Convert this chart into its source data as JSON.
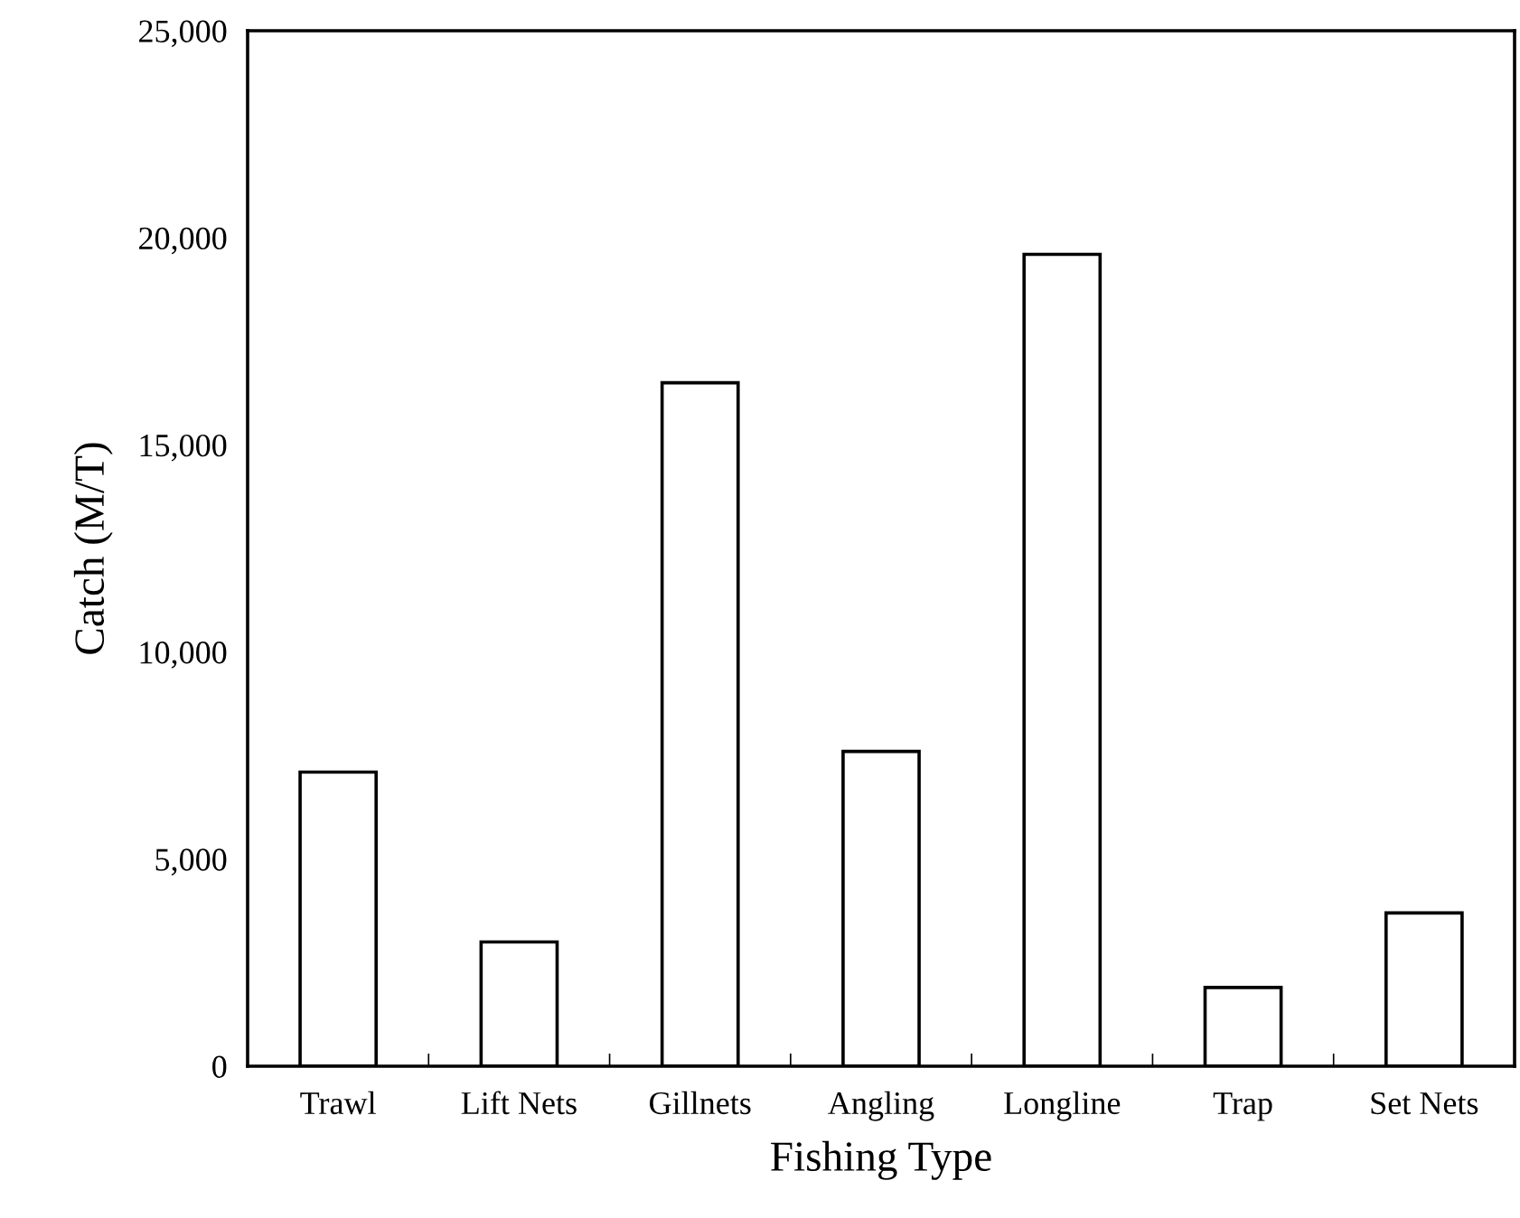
{
  "chart_data": {
    "type": "bar",
    "xlabel": "Fishing Type",
    "ylabel": "Catch (M/T)",
    "categories": [
      "Trawl",
      "Lift Nets",
      "Gillnets",
      "Angling",
      "Longline",
      "Trap",
      "Set Nets"
    ],
    "values": [
      7100,
      3000,
      16500,
      7600,
      19600,
      1900,
      3700
    ],
    "color": "#ffffff",
    "ylim": [
      0,
      25000
    ],
    "yticks": [
      {
        "value": 0,
        "label": "0"
      },
      {
        "value": 5000,
        "label": "5,000"
      },
      {
        "value": 10000,
        "label": "10,000"
      },
      {
        "value": 15000,
        "label": "15,000"
      },
      {
        "value": 20000,
        "label": "20,000"
      },
      {
        "value": 25000,
        "label": "25,000"
      }
    ],
    "grid": false
  }
}
